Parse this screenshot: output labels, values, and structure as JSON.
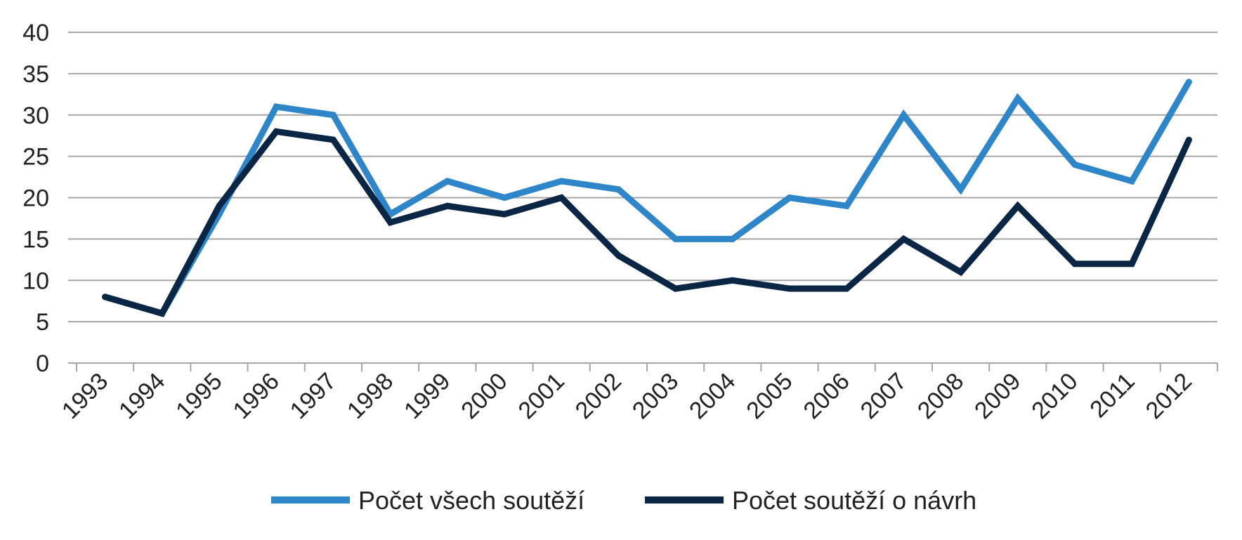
{
  "chart_data": {
    "type": "line",
    "title": "",
    "xlabel": "",
    "ylabel": "",
    "ylim": [
      0,
      40
    ],
    "yticks": [
      "0",
      "5",
      "10",
      "15",
      "20",
      "25",
      "30",
      "35",
      "40"
    ],
    "categories": [
      "1993",
      "1994",
      "1995",
      "1996",
      "1997",
      "1998",
      "1999",
      "2000",
      "2001",
      "2002",
      "2003",
      "2004",
      "2005",
      "2006",
      "2007",
      "2008",
      "2009",
      "2010",
      "2011",
      "2012"
    ],
    "grid": true,
    "legend_position": "bottom",
    "series": [
      {
        "name": "Počet všech soutěží",
        "color": "#2e86c8",
        "values": [
          8,
          6,
          18,
          31,
          30,
          18,
          22,
          20,
          22,
          21,
          15,
          15,
          20,
          19,
          30,
          21,
          32,
          24,
          22,
          34
        ]
      },
      {
        "name": "Počet soutěží o návrh",
        "color": "#0b2545",
        "values": [
          8,
          6,
          19,
          28,
          27,
          17,
          19,
          18,
          20,
          13,
          9,
          10,
          9,
          9,
          15,
          11,
          19,
          12,
          12,
          27
        ]
      }
    ]
  }
}
